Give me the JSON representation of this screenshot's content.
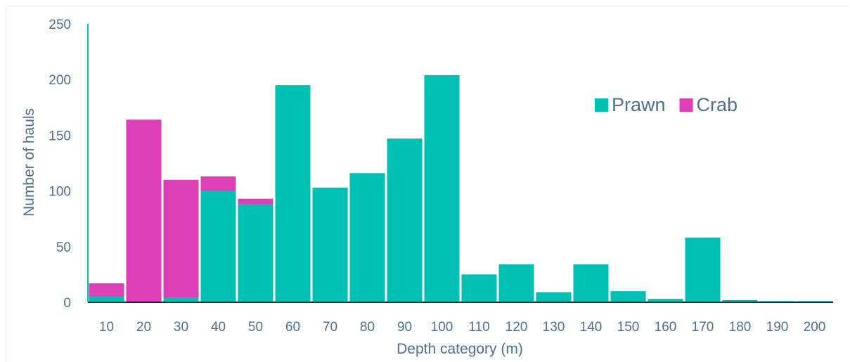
{
  "chart_data": {
    "type": "bar",
    "stacked": true,
    "title": "",
    "xlabel": "Depth category (m)",
    "ylabel": "Number of hauls",
    "categories": [
      "10",
      "20",
      "30",
      "40",
      "50",
      "60",
      "70",
      "80",
      "90",
      "100",
      "110",
      "120",
      "130",
      "140",
      "150",
      "160",
      "170",
      "180",
      "190",
      "200"
    ],
    "series": [
      {
        "name": "Prawn",
        "color": "#00bfb3",
        "values": [
          5,
          0,
          4,
          100,
          88,
          195,
          103,
          116,
          147,
          204,
          25,
          34,
          9,
          34,
          10,
          3,
          58,
          2,
          1,
          1
        ]
      },
      {
        "name": "Crab",
        "color": "#dc3fb6",
        "values": [
          12,
          164,
          106,
          13,
          5,
          0,
          0,
          0,
          0,
          0,
          0,
          0,
          0,
          0,
          0,
          0,
          0,
          0,
          0,
          0
        ]
      }
    ],
    "ylim": [
      0,
      250
    ],
    "yticks": [
      0,
      50,
      100,
      150,
      200,
      250
    ],
    "grid": false,
    "legend_position": "top-right",
    "axis_color": "#00bfb3"
  }
}
